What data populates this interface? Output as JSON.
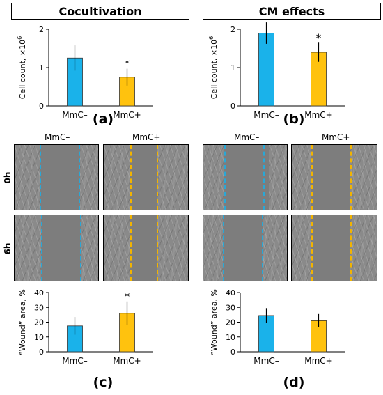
{
  "sections": {
    "left_title": "Cocultivation",
    "right_title": "CM effects"
  },
  "panels": {
    "a": "(a)",
    "b": "(b)",
    "c": "(c)",
    "d": "(d)"
  },
  "micrographs": {
    "col_headers": [
      "MmC–",
      "MmC+"
    ],
    "row_headers": [
      "0h",
      "6h"
    ]
  },
  "colors": {
    "mmc_minus": "#1ab2ea",
    "mmc_plus": "#ffc20e",
    "line_minus": "#2aa7d6",
    "line_plus": "#f2b400"
  },
  "chart_data": [
    {
      "id": "a",
      "type": "bar",
      "categories": [
        "MmC–",
        "MmC+"
      ],
      "values": [
        1.25,
        0.75
      ],
      "errors": [
        0.33,
        0.22
      ],
      "significance": [
        "",
        "*"
      ],
      "ylabel": "Cell count, ×10",
      "ylabel_sup": "6",
      "ylim": [
        0,
        2
      ],
      "yticks": [
        0,
        1,
        2
      ]
    },
    {
      "id": "b",
      "type": "bar",
      "categories": [
        "MmC–",
        "MmC+"
      ],
      "values": [
        1.9,
        1.4
      ],
      "errors": [
        0.28,
        0.25
      ],
      "significance": [
        "",
        "*"
      ],
      "ylabel": "Cell count, ×10",
      "ylabel_sup": "6",
      "ylim": [
        0,
        2
      ],
      "yticks": [
        0,
        1,
        2
      ]
    },
    {
      "id": "c",
      "type": "bar",
      "categories": [
        "MmC–",
        "MmC+"
      ],
      "values": [
        17.5,
        26.0
      ],
      "errors": [
        6.0,
        8.0
      ],
      "significance": [
        "",
        "*"
      ],
      "ylabel": "“Wound” area, %",
      "ylabel_sup": "",
      "ylim": [
        0,
        40
      ],
      "yticks": [
        0,
        10,
        20,
        30,
        40
      ]
    },
    {
      "id": "d",
      "type": "bar",
      "categories": [
        "MmC–",
        "MmC+"
      ],
      "values": [
        24.5,
        21.0
      ],
      "errors": [
        5.0,
        4.5
      ],
      "significance": [
        "",
        ""
      ],
      "ylabel": "“Wound” area, %",
      "ylabel_sup": "",
      "ylim": [
        0,
        40
      ],
      "yticks": [
        0,
        10,
        20,
        30,
        40
      ]
    }
  ]
}
